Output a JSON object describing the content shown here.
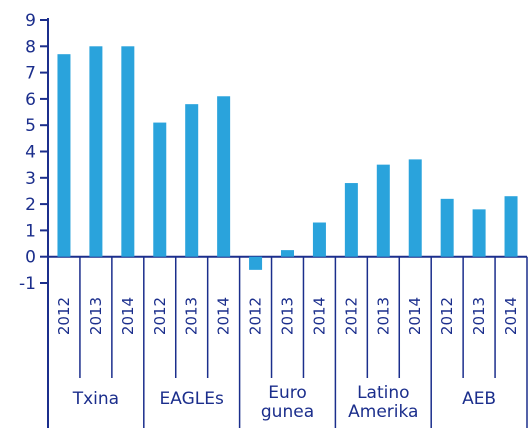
{
  "chart_data": {
    "type": "bar",
    "title": "",
    "xlabel": "",
    "ylabel": "",
    "ylim": [
      -1,
      9
    ],
    "y_ticks": [
      "-1",
      "0",
      "1",
      "2",
      "3",
      "4",
      "5",
      "6",
      "7",
      "8",
      "9"
    ],
    "grid": false,
    "legend": "none",
    "colors": {
      "bar": "#2aa3dc",
      "axis": "#1b2e8c",
      "text": "#1b2e8c"
    },
    "groups": [
      {
        "label": [
          "Txina"
        ],
        "years": [
          "2012",
          "2013",
          "2014"
        ],
        "values": [
          7.7,
          8.0,
          8.0
        ]
      },
      {
        "label": [
          "EAGLEs"
        ],
        "years": [
          "2012",
          "2013",
          "2014"
        ],
        "values": [
          5.1,
          5.8,
          6.1
        ]
      },
      {
        "label": [
          "Euro",
          "gunea"
        ],
        "years": [
          "2012",
          "2013",
          "2014"
        ],
        "values": [
          -0.5,
          0.25,
          1.3
        ]
      },
      {
        "label": [
          "Latino",
          "Amerika"
        ],
        "years": [
          "2012",
          "2013",
          "2014"
        ],
        "values": [
          2.8,
          3.5,
          3.7
        ]
      },
      {
        "label": [
          "AEB"
        ],
        "years": [
          "2012",
          "2013",
          "2014"
        ],
        "values": [
          2.2,
          1.8,
          2.3
        ]
      }
    ]
  }
}
